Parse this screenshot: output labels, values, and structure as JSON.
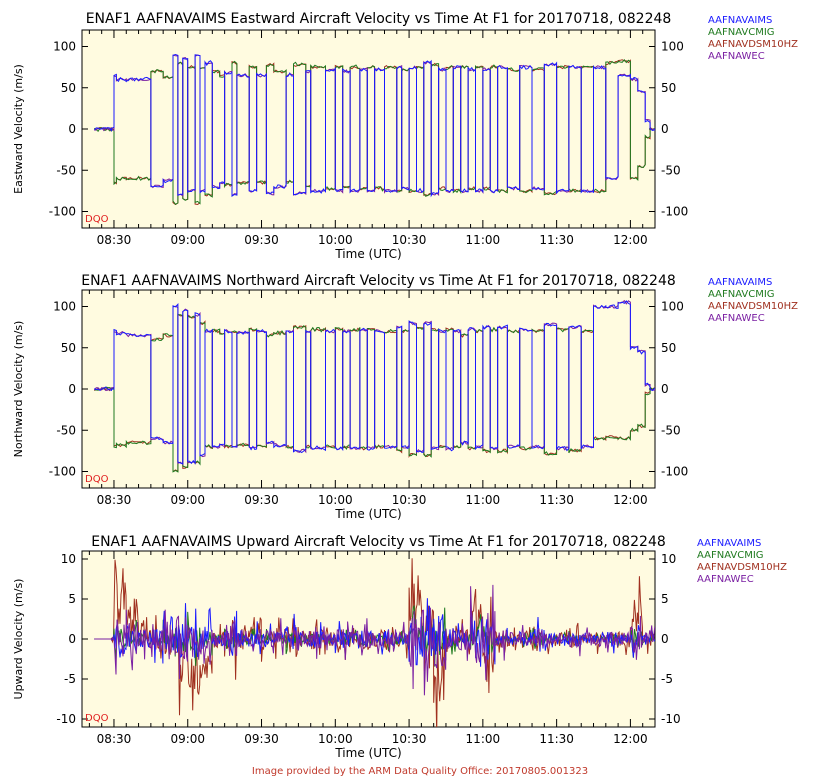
{
  "colors": {
    "AAFNAVAIMS": "#1a1aff",
    "AAFNAVCMIG": "#1f7a1f",
    "AAFNAVDSM10HZ": "#a0301f",
    "AAFNAWEC": "#7a1fa2",
    "plot_bg": "#fffbe0",
    "dqo": "#e02020",
    "footer": "#c0392b"
  },
  "dqo_label": "DQO",
  "footer": "Image provided by the ARM Data Quality Office: 20170805.001323",
  "chart_data": [
    {
      "type": "line",
      "title": "ENAF1 AAFNAVAIMS Eastward Aircraft Velocity vs Time At F1 for 20170718, 082248",
      "xlabel": "Time (UTC)",
      "ylabel": "Eastward Velocity (m/s)",
      "xlim": [
        "08:17",
        "12:10"
      ],
      "ylim": [
        -120,
        120
      ],
      "yticks": [
        -100,
        -50,
        0,
        50,
        100
      ],
      "xticks": [
        "08:30",
        "09:00",
        "09:30",
        "10:00",
        "10:30",
        "11:00",
        "11:30",
        "12:00"
      ],
      "grid": false,
      "legend": "right",
      "series": [
        {
          "name": "AAFNAVAIMS",
          "color_key": "AAFNAVAIMS"
        },
        {
          "name": "AAFNAVCMIG",
          "color_key": "AAFNAVCMIG"
        },
        {
          "name": "AAFNAVDSM10HZ",
          "color_key": "AAFNAVDSM10HZ"
        },
        {
          "name": "AAFNAWEC",
          "color_key": "AAFNAWEC"
        }
      ],
      "x": [
        "08:22",
        "08:29",
        "08:30",
        "08:31",
        "08:35",
        "08:45",
        "08:50",
        "08:54",
        "08:56",
        "08:58",
        "09:00",
        "09:03",
        "09:05",
        "09:07",
        "09:10",
        "09:13",
        "09:15",
        "09:18",
        "09:20",
        "09:25",
        "09:28",
        "09:32",
        "09:35",
        "09:40",
        "09:43",
        "09:48",
        "09:50",
        "09:56",
        "10:00",
        "10:03",
        "10:06",
        "10:10",
        "10:13",
        "10:16",
        "10:20",
        "10:25",
        "10:27",
        "10:30",
        "10:33",
        "10:36",
        "10:39",
        "10:42",
        "10:45",
        "10:48",
        "10:51",
        "10:54",
        "10:57",
        "11:00",
        "11:03",
        "11:06",
        "11:10",
        "11:15",
        "11:20",
        "11:25",
        "11:30",
        "11:35",
        "11:40",
        "11:45",
        "11:50",
        "11:55",
        "12:00",
        "12:03",
        "12:06",
        "12:08",
        "12:10"
      ],
      "values_east_up": [
        0,
        0,
        65,
        60,
        60,
        -70,
        -62,
        90,
        -80,
        85,
        -75,
        90,
        -75,
        80,
        -70,
        -65,
        68,
        -80,
        65,
        -75,
        65,
        -78,
        -70,
        65,
        -78,
        70,
        -75,
        72,
        -75,
        70,
        -75,
        72,
        -75,
        72,
        -75,
        75,
        -72,
        75,
        -75,
        80,
        -78,
        72,
        -75,
        75,
        -75,
        72,
        -75,
        72,
        -75,
        75,
        -72,
        75,
        -72,
        78,
        -75,
        75,
        -75,
        75,
        -60,
        65,
        60,
        45,
        10,
        0,
        0
      ],
      "values_east_dn": [
        0,
        0,
        -65,
        -60,
        -60,
        70,
        62,
        -90,
        80,
        -85,
        75,
        -90,
        75,
        -80,
        70,
        65,
        -68,
        80,
        -65,
        75,
        -65,
        78,
        70,
        -65,
        78,
        -70,
        75,
        -72,
        75,
        -70,
        75,
        -72,
        75,
        -72,
        75,
        -75,
        72,
        -75,
        75,
        -80,
        78,
        -72,
        75,
        -75,
        75,
        -72,
        75,
        -72,
        75,
        -75,
        72,
        -75,
        72,
        -78,
        75,
        -75,
        75,
        -75,
        80,
        82,
        -60,
        -45,
        -10,
        0,
        0
      ]
    },
    {
      "type": "line",
      "title": "ENAF1 AAFNAVAIMS Northward Aircraft Velocity vs Time At F1 for 20170718, 082248",
      "xlabel": "Time (UTC)",
      "ylabel": "Northward Velocity (m/s)",
      "xlim": [
        "08:17",
        "12:10"
      ],
      "ylim": [
        -120,
        120
      ],
      "yticks": [
        -100,
        -50,
        0,
        50,
        100
      ],
      "xticks": [
        "08:30",
        "09:00",
        "09:30",
        "10:00",
        "10:30",
        "11:00",
        "11:30",
        "12:00"
      ],
      "grid": false,
      "legend": "right",
      "series": [
        {
          "name": "AAFNAVAIMS",
          "color_key": "AAFNAVAIMS"
        },
        {
          "name": "AAFNAVCMIG",
          "color_key": "AAFNAVCMIG"
        },
        {
          "name": "AAFNAVDSM10HZ",
          "color_key": "AAFNAVDSM10HZ"
        },
        {
          "name": "AAFNAWEC",
          "color_key": "AAFNAWEC"
        }
      ],
      "x": [
        "08:22",
        "08:29",
        "08:30",
        "08:31",
        "08:35",
        "08:45",
        "08:50",
        "08:54",
        "08:56",
        "08:58",
        "09:00",
        "09:03",
        "09:05",
        "09:07",
        "09:10",
        "09:13",
        "09:15",
        "09:18",
        "09:20",
        "09:25",
        "09:28",
        "09:32",
        "09:35",
        "09:40",
        "09:43",
        "09:48",
        "09:50",
        "09:56",
        "10:00",
        "10:03",
        "10:06",
        "10:10",
        "10:13",
        "10:16",
        "10:20",
        "10:25",
        "10:27",
        "10:30",
        "10:33",
        "10:36",
        "10:39",
        "10:42",
        "10:45",
        "10:48",
        "10:51",
        "10:54",
        "10:57",
        "11:00",
        "11:03",
        "11:06",
        "11:10",
        "11:15",
        "11:20",
        "11:25",
        "11:30",
        "11:35",
        "11:40",
        "11:45",
        "11:50",
        "11:55",
        "12:00",
        "12:03",
        "12:06",
        "12:08",
        "12:10"
      ],
      "values_north_up": [
        0,
        0,
        70,
        68,
        65,
        -60,
        -65,
        100,
        -90,
        95,
        -88,
        90,
        -80,
        70,
        -70,
        -68,
        70,
        -70,
        68,
        -72,
        70,
        -65,
        -68,
        70,
        -75,
        70,
        -72,
        70,
        -72,
        70,
        -72,
        72,
        -72,
        70,
        -70,
        75,
        -70,
        80,
        -75,
        80,
        -72,
        70,
        -72,
        70,
        -65,
        72,
        -70,
        75,
        -72,
        75,
        -70,
        72,
        -70,
        78,
        -72,
        75,
        -70,
        100,
        100,
        105,
        50,
        45,
        5,
        0,
        0
      ],
      "values_north_dn": [
        0,
        0,
        -70,
        -68,
        -65,
        60,
        65,
        -100,
        90,
        -95,
        88,
        -90,
        80,
        -70,
        70,
        68,
        -70,
        70,
        -68,
        72,
        -70,
        65,
        68,
        -70,
        75,
        -70,
        72,
        -70,
        72,
        -70,
        72,
        -72,
        72,
        -70,
        70,
        -75,
        70,
        -80,
        75,
        -80,
        72,
        -70,
        72,
        -70,
        65,
        -72,
        70,
        -75,
        72,
        -75,
        70,
        -72,
        70,
        -78,
        72,
        -75,
        70,
        -60,
        -58,
        -60,
        -50,
        -45,
        -5,
        0,
        0
      ]
    },
    {
      "type": "line",
      "title": "ENAF1 AAFNAVAIMS Upward Aircraft Velocity vs Time At F1 for 20170718, 082248",
      "xlabel": "Time (UTC)",
      "ylabel": "Upward Velocity (m/s)",
      "xlim": [
        "08:17",
        "12:10"
      ],
      "ylim": [
        -11,
        11
      ],
      "yticks": [
        -10,
        -5,
        0,
        5,
        10
      ],
      "xticks": [
        "08:30",
        "09:00",
        "09:30",
        "10:00",
        "10:30",
        "11:00",
        "11:30",
        "12:00"
      ],
      "grid": false,
      "legend": "right",
      "series": [
        {
          "name": "AAFNAVAIMS",
          "color_key": "AAFNAVAIMS"
        },
        {
          "name": "AAFNAVCMIG",
          "color_key": "AAFNAVCMIG"
        },
        {
          "name": "AAFNAVDSM10HZ",
          "color_key": "AAFNAVDSM10HZ"
        },
        {
          "name": "AAFNAWEC",
          "color_key": "AAFNAWEC"
        }
      ],
      "x": [
        "08:22",
        "08:29",
        "08:30",
        "08:35",
        "08:40",
        "08:45",
        "08:50",
        "08:55",
        "09:00",
        "09:05",
        "09:10",
        "09:15",
        "09:20",
        "09:25",
        "09:30",
        "09:35",
        "09:40",
        "09:45",
        "09:50",
        "09:55",
        "10:00",
        "10:05",
        "10:10",
        "10:15",
        "10:20",
        "10:25",
        "10:30",
        "10:35",
        "10:40",
        "10:45",
        "10:50",
        "10:55",
        "11:00",
        "11:05",
        "11:10",
        "11:15",
        "11:20",
        "11:25",
        "11:30",
        "11:35",
        "11:40",
        "11:45",
        "11:50",
        "11:55",
        "12:00",
        "12:05",
        "12:10"
      ],
      "amplitude": [
        0,
        0.5,
        6,
        5,
        3,
        4,
        5,
        7,
        7,
        5,
        2.5,
        6,
        3,
        4,
        3,
        3,
        4.5,
        2.5,
        3,
        2,
        3,
        2.5,
        3,
        2.5,
        3.5,
        2.5,
        9,
        10,
        9,
        4,
        3.5,
        7.5,
        9,
        3,
        2,
        2.5,
        3.5,
        2,
        2,
        2.5,
        2,
        2,
        2.5,
        2,
        5,
        2,
        0
      ],
      "dsm_offset": [
        0,
        0,
        4.5,
        3,
        1,
        0,
        0,
        -3,
        -4,
        -3,
        0,
        0,
        0,
        1,
        0,
        0,
        0,
        0,
        0,
        0,
        0,
        0,
        0,
        0,
        0,
        0,
        4,
        0,
        -4,
        0,
        0,
        3,
        -3,
        0,
        0,
        0,
        0,
        0,
        0,
        0,
        0,
        0,
        0,
        0,
        3,
        0,
        0
      ]
    }
  ]
}
